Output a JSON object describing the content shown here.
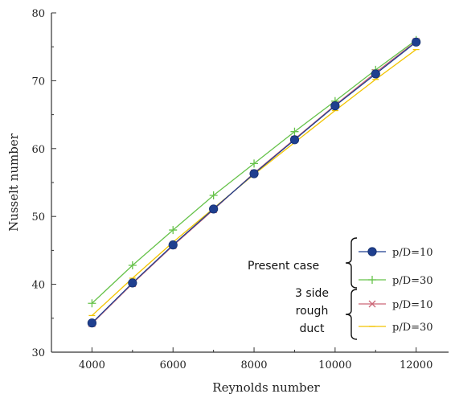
{
  "chart_data": {
    "type": "line",
    "title": "",
    "xlabel": "Reynolds number",
    "ylabel": "Nusselt number",
    "xlim": [
      3000,
      12800
    ],
    "ylim": [
      30,
      80
    ],
    "xticks": [
      4000,
      6000,
      8000,
      10000,
      12000
    ],
    "yticks": [
      30,
      40,
      50,
      60,
      70,
      80
    ],
    "x": [
      4000,
      5000,
      6000,
      7000,
      8000,
      9000,
      10000,
      11000,
      12000
    ],
    "series": [
      {
        "name": "p/D=10",
        "group": "present",
        "color": "#1f3f8f",
        "marker": "circle",
        "values": [
          34.3,
          40.2,
          45.8,
          51.1,
          56.3,
          61.3,
          66.3,
          71.0,
          75.7
        ]
      },
      {
        "name": "p/D=30",
        "group": "present",
        "color": "#66c24a",
        "marker": "plus",
        "values": [
          37.2,
          42.8,
          48.0,
          53.1,
          57.8,
          62.5,
          67.0,
          71.6,
          76.0
        ]
      },
      {
        "name": "p/D=10",
        "group": "three_side",
        "color": "#cc6677",
        "marker": "cross",
        "values": [
          34.2,
          40.1,
          45.7,
          51.0,
          56.4,
          61.4,
          66.4,
          71.2,
          75.8
        ]
      },
      {
        "name": "p/D=30",
        "group": "three_side",
        "color": "#f2c400",
        "marker": "line",
        "values": [
          35.4,
          40.9,
          46.2,
          51.2,
          56.2,
          60.9,
          65.6,
          70.2,
          74.6
        ]
      }
    ],
    "annotations": {
      "present": "Present case",
      "three_side": [
        "3 side",
        "rough",
        "duct"
      ]
    },
    "grid": false,
    "legend_placement": "bottom-right"
  }
}
